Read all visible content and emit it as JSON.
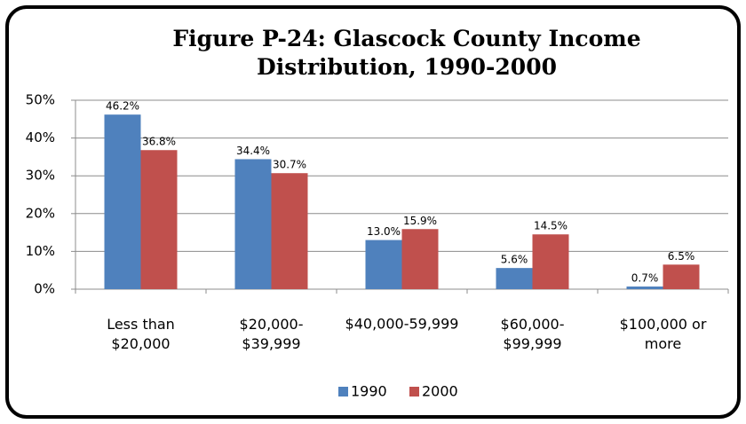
{
  "chart_data": {
    "type": "bar",
    "title": "Figure P-24: Glascock County Income\nDistribution, 1990-2000",
    "categories": [
      "Less than\n$20,000",
      "$20,000-\n$39,999",
      "$40,000-59,999",
      "$60,000-\n$99,999",
      "$100,000 or\nmore"
    ],
    "series": [
      {
        "name": "1990",
        "color": "#4f81bd",
        "values": [
          46.2,
          34.4,
          13.0,
          5.6,
          0.7
        ],
        "value_labels": [
          "46.2%",
          "34.4%",
          "13.0%",
          "5.6%",
          "0.7%"
        ]
      },
      {
        "name": "2000",
        "color": "#c0504d",
        "values": [
          36.8,
          30.7,
          15.9,
          14.5,
          6.5
        ],
        "value_labels": [
          "36.8%",
          "30.7%",
          "15.9%",
          "14.5%",
          "6.5%"
        ]
      }
    ],
    "ylim": [
      0,
      50
    ],
    "yticks": [
      {
        "value": 0,
        "label": "0%"
      },
      {
        "value": 10,
        "label": "10%"
      },
      {
        "value": 20,
        "label": "20%"
      },
      {
        "value": 30,
        "label": "30%"
      },
      {
        "value": 40,
        "label": "40%"
      },
      {
        "value": 50,
        "label": "50%"
      }
    ],
    "grid": true,
    "legend": "bottom"
  }
}
